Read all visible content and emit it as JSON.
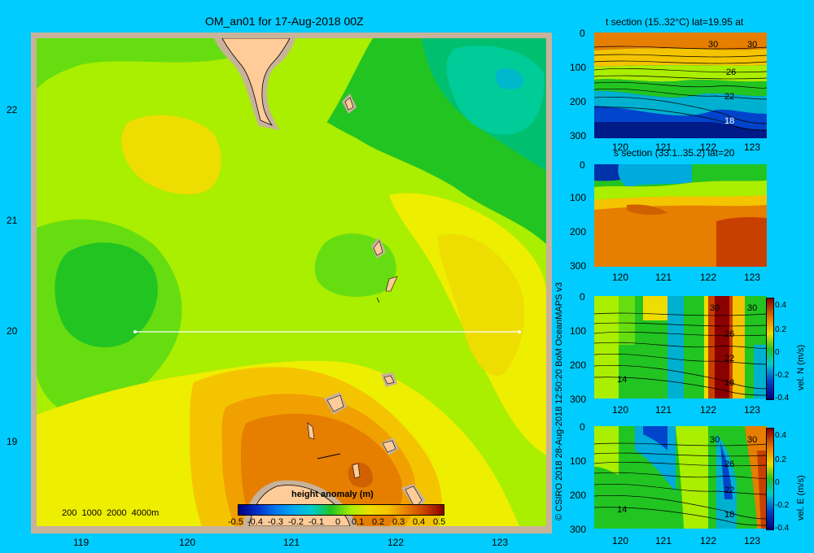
{
  "main_map": {
    "title": "OM_an01 for 17-Aug-2018 00Z",
    "lat_ticks": [
      "22",
      "21",
      "20",
      "19"
    ],
    "lon_ticks": [
      "119",
      "120",
      "121",
      "122",
      "123"
    ],
    "depth_legend": "200  1000  2000  4000m",
    "colorbar_title": "height anomaly  (m)",
    "colorbar_ticks": [
      "-0.5",
      "-0.4",
      "-0.3",
      "-0.2",
      "-0.1",
      "0",
      "0.1",
      "0.2",
      "0.3",
      "0.4",
      "0.5"
    ],
    "colors": {
      "low": "#000080",
      "mid_green": "#22c422",
      "yellow": "#eeee00",
      "orange": "#e67e00",
      "high": "#8b0000",
      "land": "#ffcc99",
      "shelf": "#c8b29a"
    }
  },
  "credit": "© CSIRO 2018   28-Aug-2018 12:50:20 BoM OceanMAPS v3",
  "panels": [
    {
      "title": "t section (15..32°C) lat=19.95 at",
      "y_ticks": [
        "0",
        "100",
        "200",
        "300"
      ],
      "x_ticks": [
        "120",
        "121",
        "122",
        "123"
      ],
      "contour_labels": [
        "30",
        "30",
        "26",
        "22",
        "18"
      ]
    },
    {
      "title": "s section (33.1..35.2) lat=20",
      "y_ticks": [
        "0",
        "100",
        "200",
        "300"
      ],
      "x_ticks": [
        "120",
        "121",
        "122",
        "123"
      ]
    },
    {
      "title": "",
      "y_ticks": [
        "0",
        "100",
        "200",
        "300"
      ],
      "x_ticks": [
        "120",
        "121",
        "122",
        "123"
      ],
      "contour_labels": [
        "30",
        "30",
        "26",
        "22",
        "18",
        "14"
      ],
      "colorbar_label": "vel. N  (m/s)",
      "colorbar_ticks": [
        "0.4",
        "0.2",
        "0",
        "-0.2",
        "-0.4"
      ]
    },
    {
      "title": "",
      "y_ticks": [
        "0",
        "100",
        "200",
        "300"
      ],
      "x_ticks": [
        "120",
        "121",
        "122",
        "123"
      ],
      "contour_labels": [
        "30",
        "30",
        "26",
        "22",
        "18",
        "14"
      ],
      "colorbar_label": "vel. E  (m/s)",
      "colorbar_ticks": [
        "0.4",
        "0.2",
        "0",
        "-0.2",
        "-0.4"
      ]
    }
  ]
}
